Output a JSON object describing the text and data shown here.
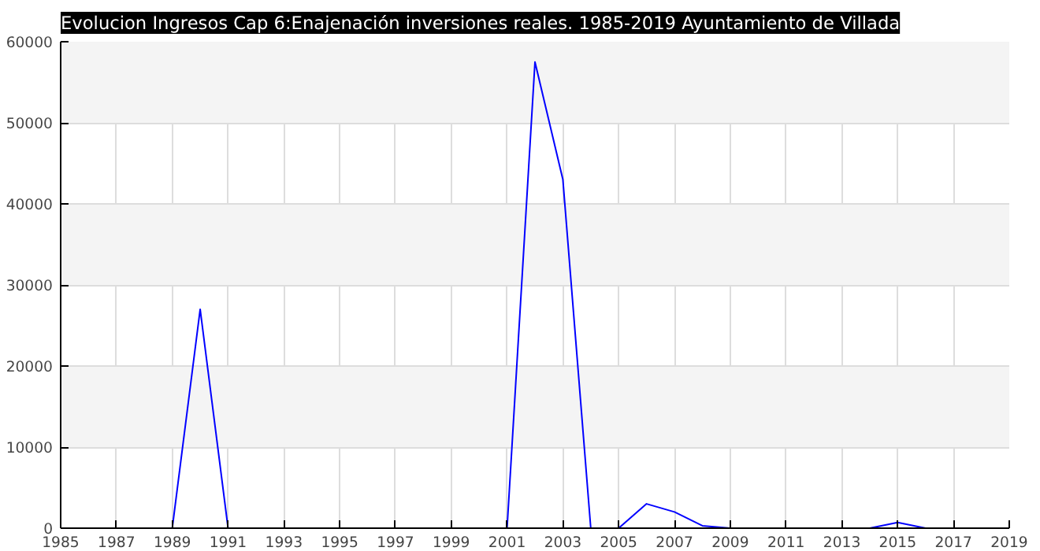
{
  "chart_data": {
    "type": "line",
    "title": "Evolucion Ingresos Cap 6:Enajenación inversiones reales. 1985-2019 Ayuntamiento de Villada",
    "x": [
      1989,
      1990,
      1991,
      1992,
      1993,
      1994,
      1995,
      1996,
      1997,
      1998,
      1999,
      2000,
      2001,
      2002,
      2003,
      2004,
      2005,
      2006,
      2007,
      2008,
      2009,
      2010,
      2011,
      2012,
      2013,
      2014,
      2015,
      2016
    ],
    "series": [
      {
        "color": "#0000ff",
        "values": [
          0,
          27000,
          0,
          null,
          null,
          null,
          null,
          null,
          null,
          null,
          null,
          null,
          0,
          57500,
          43000,
          0,
          0,
          3000,
          2000,
          300,
          0,
          null,
          null,
          null,
          null,
          0,
          700,
          0
        ]
      }
    ],
    "xlim": [
      1985,
      2019
    ],
    "xticks": [
      1985,
      1987,
      1989,
      1991,
      1993,
      1995,
      1997,
      1999,
      2001,
      2003,
      2005,
      2007,
      2009,
      2011,
      2013,
      2015,
      2017,
      2019
    ],
    "ylim": [
      0,
      60000
    ],
    "yticks": [
      0,
      10000,
      20000,
      30000,
      40000,
      50000,
      60000
    ],
    "grid": true,
    "marker": "none",
    "line_style": "solid"
  }
}
